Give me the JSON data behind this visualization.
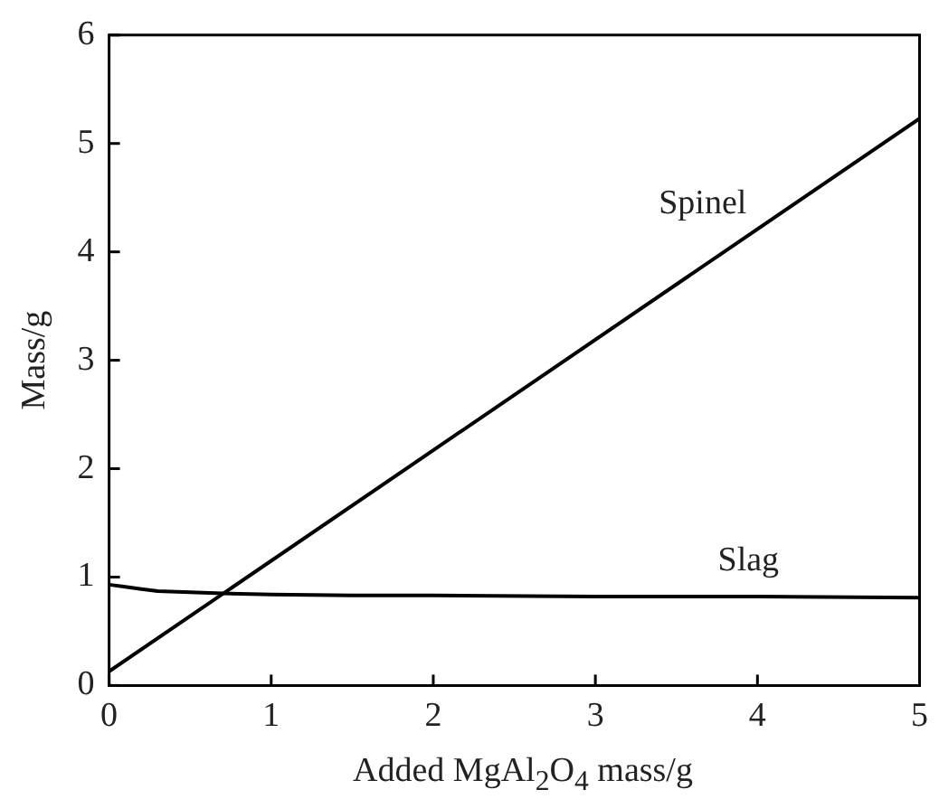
{
  "chart_data": {
    "type": "line",
    "xlabel": "Added MgAl$_{2}$O$_{4}$ mass/g",
    "ylabel": "Mass/g",
    "xlim": [
      0,
      5
    ],
    "xticks": [
      0,
      1,
      2,
      3,
      4,
      5
    ],
    "ylim": [
      0,
      6
    ],
    "yticks": [
      0,
      1,
      2,
      3,
      4,
      5,
      6
    ],
    "grid": false,
    "legend": false,
    "marker": "none",
    "line_style": "solid",
    "series": [
      {
        "name": "Spinel",
        "color": "#000000",
        "x": [
          0,
          5
        ],
        "values": [
          0.13,
          5.23
        ]
      },
      {
        "name": "Slag",
        "color": "#000000",
        "x": [
          0,
          0.1,
          0.2,
          0.3,
          0.5,
          0.7,
          1,
          1.5,
          2,
          3,
          4,
          5
        ],
        "values": [
          0.93,
          0.91,
          0.89,
          0.87,
          0.86,
          0.85,
          0.84,
          0.83,
          0.83,
          0.82,
          0.82,
          0.81
        ]
      }
    ]
  }
}
